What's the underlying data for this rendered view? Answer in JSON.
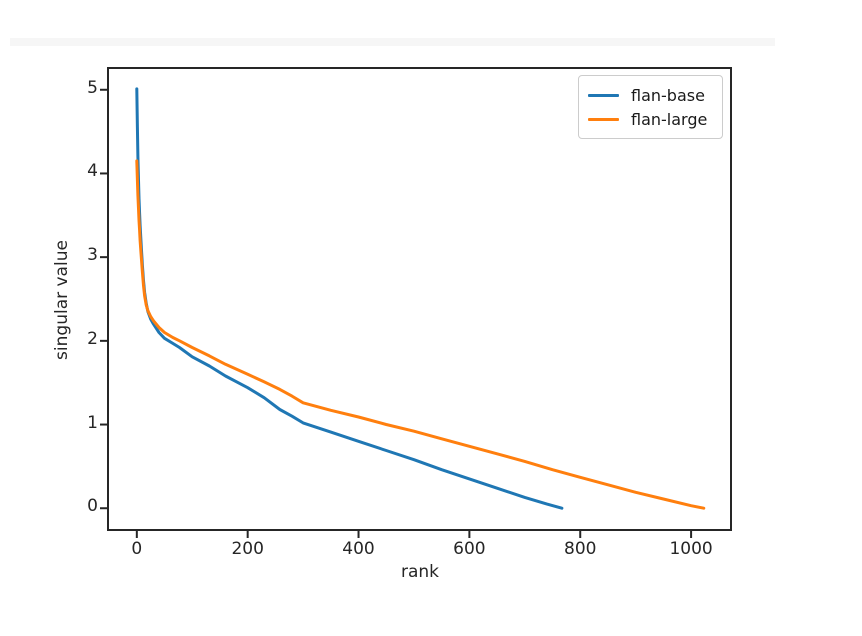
{
  "page": {
    "background": "#ffffff",
    "divider_color": "#f6f6f6"
  },
  "chart_data": {
    "type": "line",
    "title": "",
    "xlabel": "rank",
    "ylabel": "singular value",
    "xlim": [
      -52,
      1072
    ],
    "ylim": [
      -0.26,
      5.26
    ],
    "xticks": [
      0,
      200,
      400,
      600,
      800,
      1000
    ],
    "yticks": [
      0,
      1,
      2,
      3,
      4,
      5
    ],
    "grid": false,
    "legend_position": "upper right",
    "frame_color": "#262626",
    "tick_color": "#262626",
    "series": [
      {
        "name": "flan-base",
        "color": "#1f77b4",
        "points": [
          [
            0,
            5.01
          ],
          [
            1,
            4.55
          ],
          [
            2,
            4.2
          ],
          [
            3,
            3.92
          ],
          [
            4,
            3.7
          ],
          [
            5,
            3.52
          ],
          [
            6,
            3.38
          ],
          [
            8,
            3.12
          ],
          [
            10,
            2.9
          ],
          [
            12,
            2.72
          ],
          [
            14,
            2.58
          ],
          [
            17,
            2.45
          ],
          [
            20,
            2.35
          ],
          [
            25,
            2.26
          ],
          [
            30,
            2.2
          ],
          [
            40,
            2.1
          ],
          [
            50,
            2.03
          ],
          [
            65,
            1.97
          ],
          [
            77,
            1.92
          ],
          [
            100,
            1.81
          ],
          [
            131,
            1.7
          ],
          [
            160,
            1.58
          ],
          [
            200,
            1.44
          ],
          [
            230,
            1.32
          ],
          [
            258,
            1.18
          ],
          [
            280,
            1.1
          ],
          [
            300,
            1.02
          ],
          [
            350,
            0.91
          ],
          [
            400,
            0.8
          ],
          [
            450,
            0.69
          ],
          [
            500,
            0.58
          ],
          [
            550,
            0.46
          ],
          [
            600,
            0.35
          ],
          [
            650,
            0.24
          ],
          [
            700,
            0.13
          ],
          [
            740,
            0.05
          ],
          [
            767,
            0.0
          ]
        ]
      },
      {
        "name": "flan-large",
        "color": "#ff7f0e",
        "points": [
          [
            0,
            4.15
          ],
          [
            1,
            3.92
          ],
          [
            2,
            3.74
          ],
          [
            3,
            3.58
          ],
          [
            4,
            3.44
          ],
          [
            5,
            3.32
          ],
          [
            6,
            3.2
          ],
          [
            8,
            3.0
          ],
          [
            10,
            2.82
          ],
          [
            12,
            2.66
          ],
          [
            14,
            2.54
          ],
          [
            17,
            2.43
          ],
          [
            20,
            2.36
          ],
          [
            25,
            2.29
          ],
          [
            30,
            2.24
          ],
          [
            40,
            2.16
          ],
          [
            50,
            2.1
          ],
          [
            65,
            2.04
          ],
          [
            77,
            2.0
          ],
          [
            100,
            1.92
          ],
          [
            131,
            1.82
          ],
          [
            160,
            1.72
          ],
          [
            200,
            1.6
          ],
          [
            230,
            1.51
          ],
          [
            258,
            1.42
          ],
          [
            280,
            1.34
          ],
          [
            300,
            1.26
          ],
          [
            350,
            1.17
          ],
          [
            400,
            1.09
          ],
          [
            450,
            1.0
          ],
          [
            500,
            0.92
          ],
          [
            550,
            0.83
          ],
          [
            600,
            0.74
          ],
          [
            650,
            0.65
          ],
          [
            700,
            0.56
          ],
          [
            750,
            0.46
          ],
          [
            800,
            0.37
          ],
          [
            850,
            0.28
          ],
          [
            900,
            0.19
          ],
          [
            950,
            0.11
          ],
          [
            1000,
            0.03
          ],
          [
            1023,
            0.0
          ]
        ]
      }
    ]
  }
}
